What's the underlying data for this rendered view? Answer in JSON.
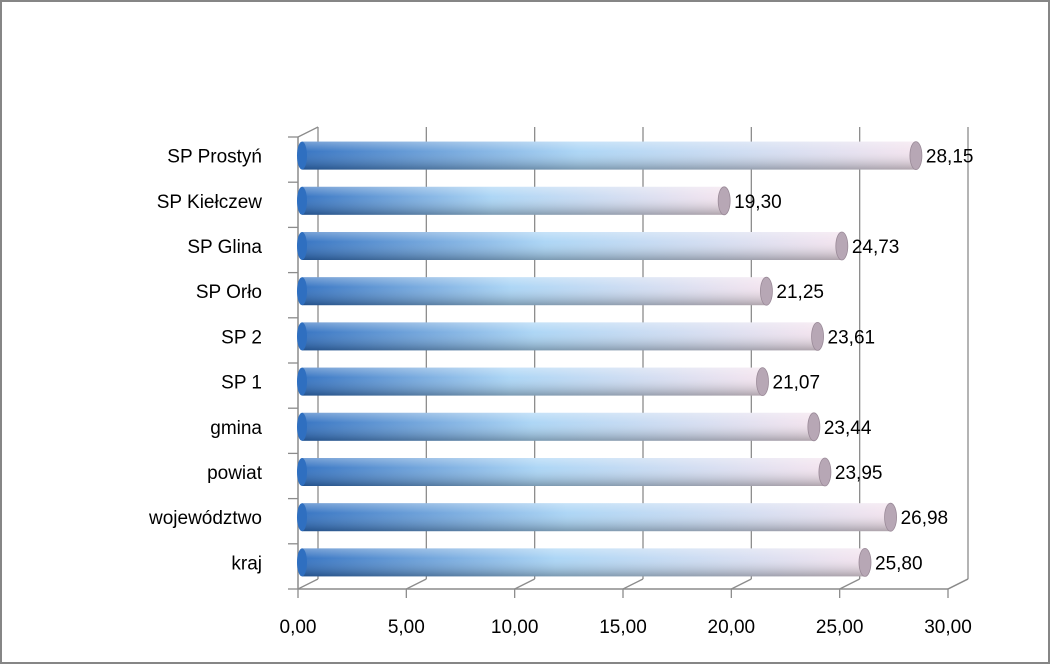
{
  "chart_data": {
    "type": "bar",
    "orientation": "horizontal",
    "style": "3d-cylinder",
    "title": "",
    "xlabel": "",
    "ylabel": "",
    "categories": [
      "SP Prostyń",
      "SP Kiełczew",
      "SP Glina",
      "SP Orło",
      "SP 2",
      "SP 1",
      "gmina",
      "powiat",
      "województwo",
      "kraj"
    ],
    "values": [
      28.15,
      19.3,
      24.73,
      21.25,
      23.61,
      21.07,
      23.44,
      23.95,
      26.98,
      25.8
    ],
    "value_labels": [
      "28,15",
      "19,30",
      "24,73",
      "21,25",
      "23,61",
      "21,07",
      "23,44",
      "23,95",
      "26,98",
      "25,80"
    ],
    "xlim": [
      0,
      30
    ],
    "xticks": [
      0,
      5,
      10,
      15,
      20,
      25,
      30
    ],
    "xtick_labels": [
      "0,00",
      "5,00",
      "10,00",
      "15,00",
      "20,00",
      "25,00",
      "30,00"
    ],
    "grid": "vertical",
    "legend": "none"
  },
  "colors": {
    "bar_start": "#2f6fc0",
    "bar_mid": "#a9d4f5",
    "bar_end": "#f3e3ee",
    "bar_cap": "#b7a7b5",
    "grid": "#8c8c8c",
    "frame": "#868686"
  }
}
